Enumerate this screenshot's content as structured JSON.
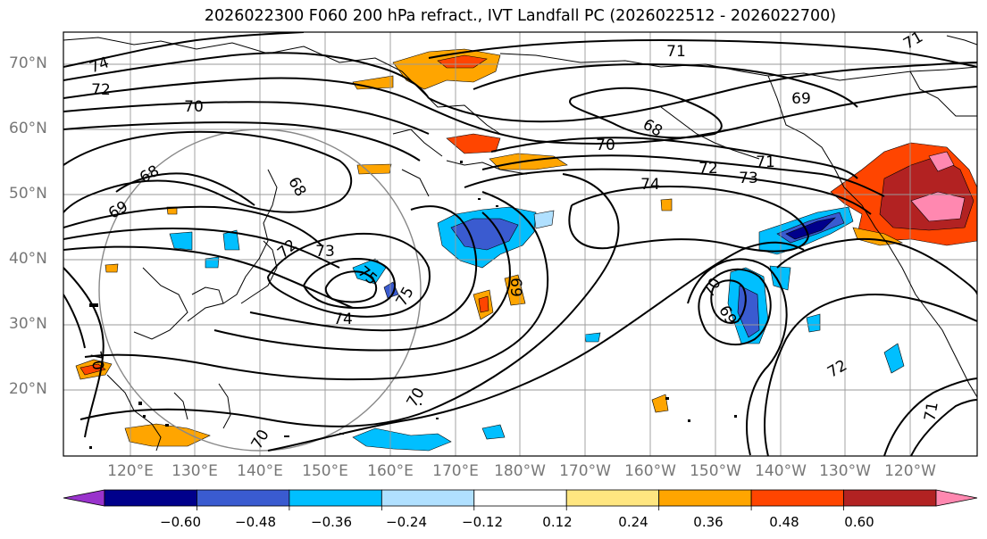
{
  "title": "2026022300 F060 200 hPa refract., IVT Landfall PC (2026022512 - 2026022700)",
  "lat_labels": [
    "70°N",
    "60°N",
    "50°N",
    "40°N",
    "30°N",
    "20°N"
  ],
  "lon_labels": [
    "120°E",
    "130°E",
    "140°E",
    "150°E",
    "160°E",
    "170°E",
    "180°W",
    "170°W",
    "160°W",
    "150°W",
    "140°W",
    "130°W",
    "120°W"
  ],
  "colorbar": {
    "colors": [
      "#9933cc",
      "#00008b",
      "#3a5bd0",
      "#00bfff",
      "#b0e0ff",
      "#ffffff",
      "#ffe680",
      "#ffa500",
      "#ff4500",
      "#b22222",
      "#ff88b0"
    ],
    "ticks": [
      "−0.60",
      "−0.48",
      "−0.36",
      "−0.24",
      "−0.12",
      "0.12",
      "0.24",
      "0.36",
      "0.48",
      "0.60"
    ]
  },
  "contour_labels": [
    "74",
    "72",
    "70",
    "71",
    "69",
    "68",
    "70",
    "71",
    "72",
    "73",
    "74",
    "68",
    "68",
    "69",
    "72",
    "73",
    "75",
    "75",
    "74",
    "69",
    "70",
    "69",
    "70",
    "70",
    "70",
    "72",
    "71",
    "71"
  ]
}
